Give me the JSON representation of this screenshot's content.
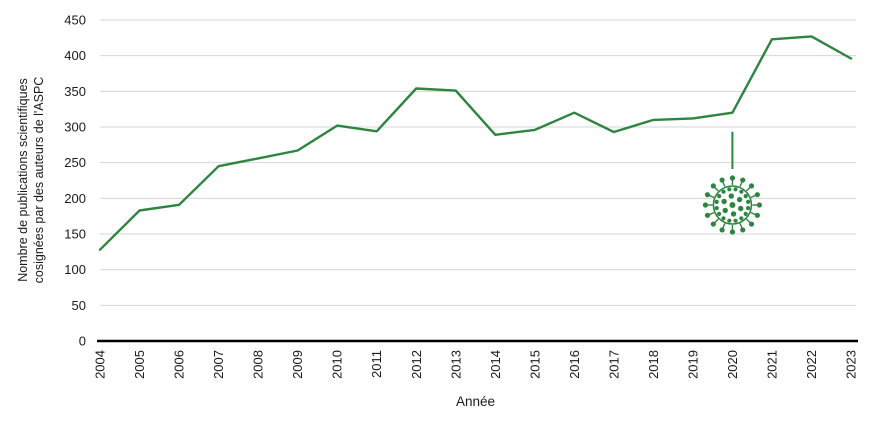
{
  "chart": {
    "y_axis_title": "Nombre de publications scientifiques\ncosignées par des auteurs de l'ASPC",
    "x_axis_title": "Année"
  },
  "chart_data": {
    "type": "line",
    "x": [
      "2004",
      "2005",
      "2006",
      "2007",
      "2008",
      "2009",
      "2010",
      "2011",
      "2012",
      "2013",
      "2014",
      "2015",
      "2016",
      "2017",
      "2018",
      "2019",
      "2020",
      "2021",
      "2022",
      "2023"
    ],
    "values": [
      128,
      183,
      191,
      245,
      256,
      267,
      302,
      294,
      354,
      351,
      289,
      296,
      320,
      293,
      310,
      312,
      320,
      423,
      427,
      396
    ],
    "title": "",
    "xlabel": "Année",
    "ylabel": "Nombre de publications scientifiques cosignées par des auteurs de l'ASPC",
    "ylim": [
      0,
      450
    ],
    "ytick_step": 50,
    "grid": true,
    "legend": false,
    "line_color": "#2e8540",
    "grid_color": "#d6d6d6",
    "axis_color": "#000000",
    "text_color": "#1a1a1a",
    "annotation": {
      "icon": "coronavirus-icon",
      "x": "2020",
      "color": "#2e8540"
    }
  }
}
